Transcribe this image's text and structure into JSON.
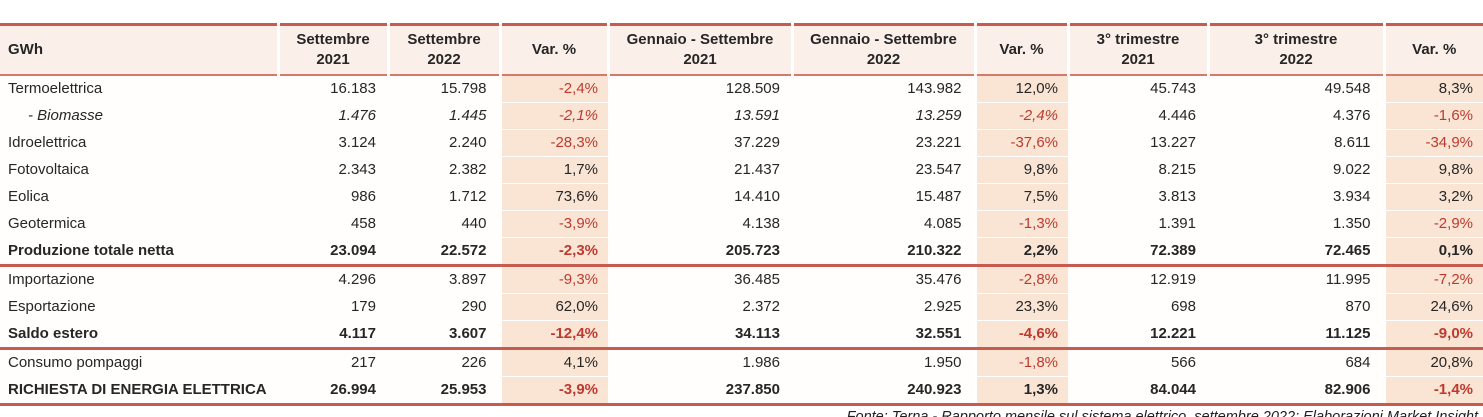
{
  "colors": {
    "accent_line": "#C75B4F",
    "accent_line_thin": "#D5796B",
    "header_bg": "#FBF0E9",
    "var_bg": "#FAE5D4",
    "negative_text": "#BE3A30",
    "body_text": "#262626"
  },
  "table": {
    "unit_label": "GWh",
    "columns": [
      {
        "id": "label",
        "type": "label",
        "line1": "GWh",
        "line2": ""
      },
      {
        "id": "sep21",
        "type": "num",
        "line1": "Settembre",
        "line2": "2021"
      },
      {
        "id": "sep22",
        "type": "num",
        "line1": "Settembre",
        "line2": "2022"
      },
      {
        "id": "var1",
        "type": "var",
        "line1": "Var. %",
        "line2": ""
      },
      {
        "id": "gen21",
        "type": "num",
        "line1": "Gennaio - Settembre",
        "line2": "2021"
      },
      {
        "id": "gen22",
        "type": "num",
        "line1": "Gennaio - Settembre",
        "line2": "2022"
      },
      {
        "id": "var2",
        "type": "var",
        "line1": "Var. %",
        "line2": ""
      },
      {
        "id": "tri21",
        "type": "num",
        "line1": "3° trimestre",
        "line2": "2021"
      },
      {
        "id": "tri22",
        "type": "num",
        "line1": "3° trimestre",
        "line2": "2022"
      },
      {
        "id": "var3",
        "type": "var",
        "line1": "Var. %",
        "line2": ""
      }
    ],
    "rows": [
      {
        "label": "Termoelettrica",
        "values": [
          "16.183",
          "15.798",
          "-2,4%",
          "128.509",
          "143.982",
          "12,0%",
          "45.743",
          "49.548",
          "8,3%"
        ]
      },
      {
        "label": "- Biomasse",
        "indent": true,
        "italic": true,
        "italic_value_count": 6,
        "values": [
          "1.476",
          "1.445",
          "-2,1%",
          "13.591",
          "13.259",
          "-2,4%",
          "4.446",
          "4.376",
          "-1,6%"
        ]
      },
      {
        "label": "Idroelettrica",
        "values": [
          "3.124",
          "2.240",
          "-28,3%",
          "37.229",
          "23.221",
          "-37,6%",
          "13.227",
          "8.611",
          "-34,9%"
        ]
      },
      {
        "label": "Fotovoltaica",
        "values": [
          "2.343",
          "2.382",
          "1,7%",
          "21.437",
          "23.547",
          "9,8%",
          "8.215",
          "9.022",
          "9,8%"
        ]
      },
      {
        "label": "Eolica",
        "values": [
          "986",
          "1.712",
          "73,6%",
          "14.410",
          "15.487",
          "7,5%",
          "3.813",
          "3.934",
          "3,2%"
        ]
      },
      {
        "label": "Geotermica",
        "values": [
          "458",
          "440",
          "-3,9%",
          "4.138",
          "4.085",
          "-1,3%",
          "1.391",
          "1.350",
          "-2,9%"
        ]
      },
      {
        "label": "Produzione totale netta",
        "bold": true,
        "section_end": true,
        "values": [
          "23.094",
          "22.572",
          "-2,3%",
          "205.723",
          "210.322",
          "2,2%",
          "72.389",
          "72.465",
          "0,1%"
        ]
      },
      {
        "label": "Importazione",
        "values": [
          "4.296",
          "3.897",
          "-9,3%",
          "36.485",
          "35.476",
          "-2,8%",
          "12.919",
          "11.995",
          "-7,2%"
        ]
      },
      {
        "label": "Esportazione",
        "values": [
          "179",
          "290",
          "62,0%",
          "2.372",
          "2.925",
          "23,3%",
          "698",
          "870",
          "24,6%"
        ]
      },
      {
        "label": "Saldo estero",
        "bold": true,
        "section_end": true,
        "values": [
          "4.117",
          "3.607",
          "-12,4%",
          "34.113",
          "32.551",
          "-4,6%",
          "12.221",
          "11.125",
          "-9,0%"
        ]
      },
      {
        "label": "Consumo pompaggi",
        "values": [
          "217",
          "226",
          "4,1%",
          "1.986",
          "1.950",
          "-1,8%",
          "566",
          "684",
          "20,8%"
        ]
      },
      {
        "label": "RICHIESTA DI ENERGIA ELETTRICA",
        "bold": true,
        "section_end": true,
        "values": [
          "26.994",
          "25.953",
          "-3,9%",
          "237.850",
          "240.923",
          "1,3%",
          "84.044",
          "82.906",
          "-1,4%"
        ]
      }
    ]
  },
  "footer": {
    "source": "Fonte: Terna - Rapporto mensile sul sistema elettrico, settembre 2022; Elaborazioni Market Insight"
  }
}
